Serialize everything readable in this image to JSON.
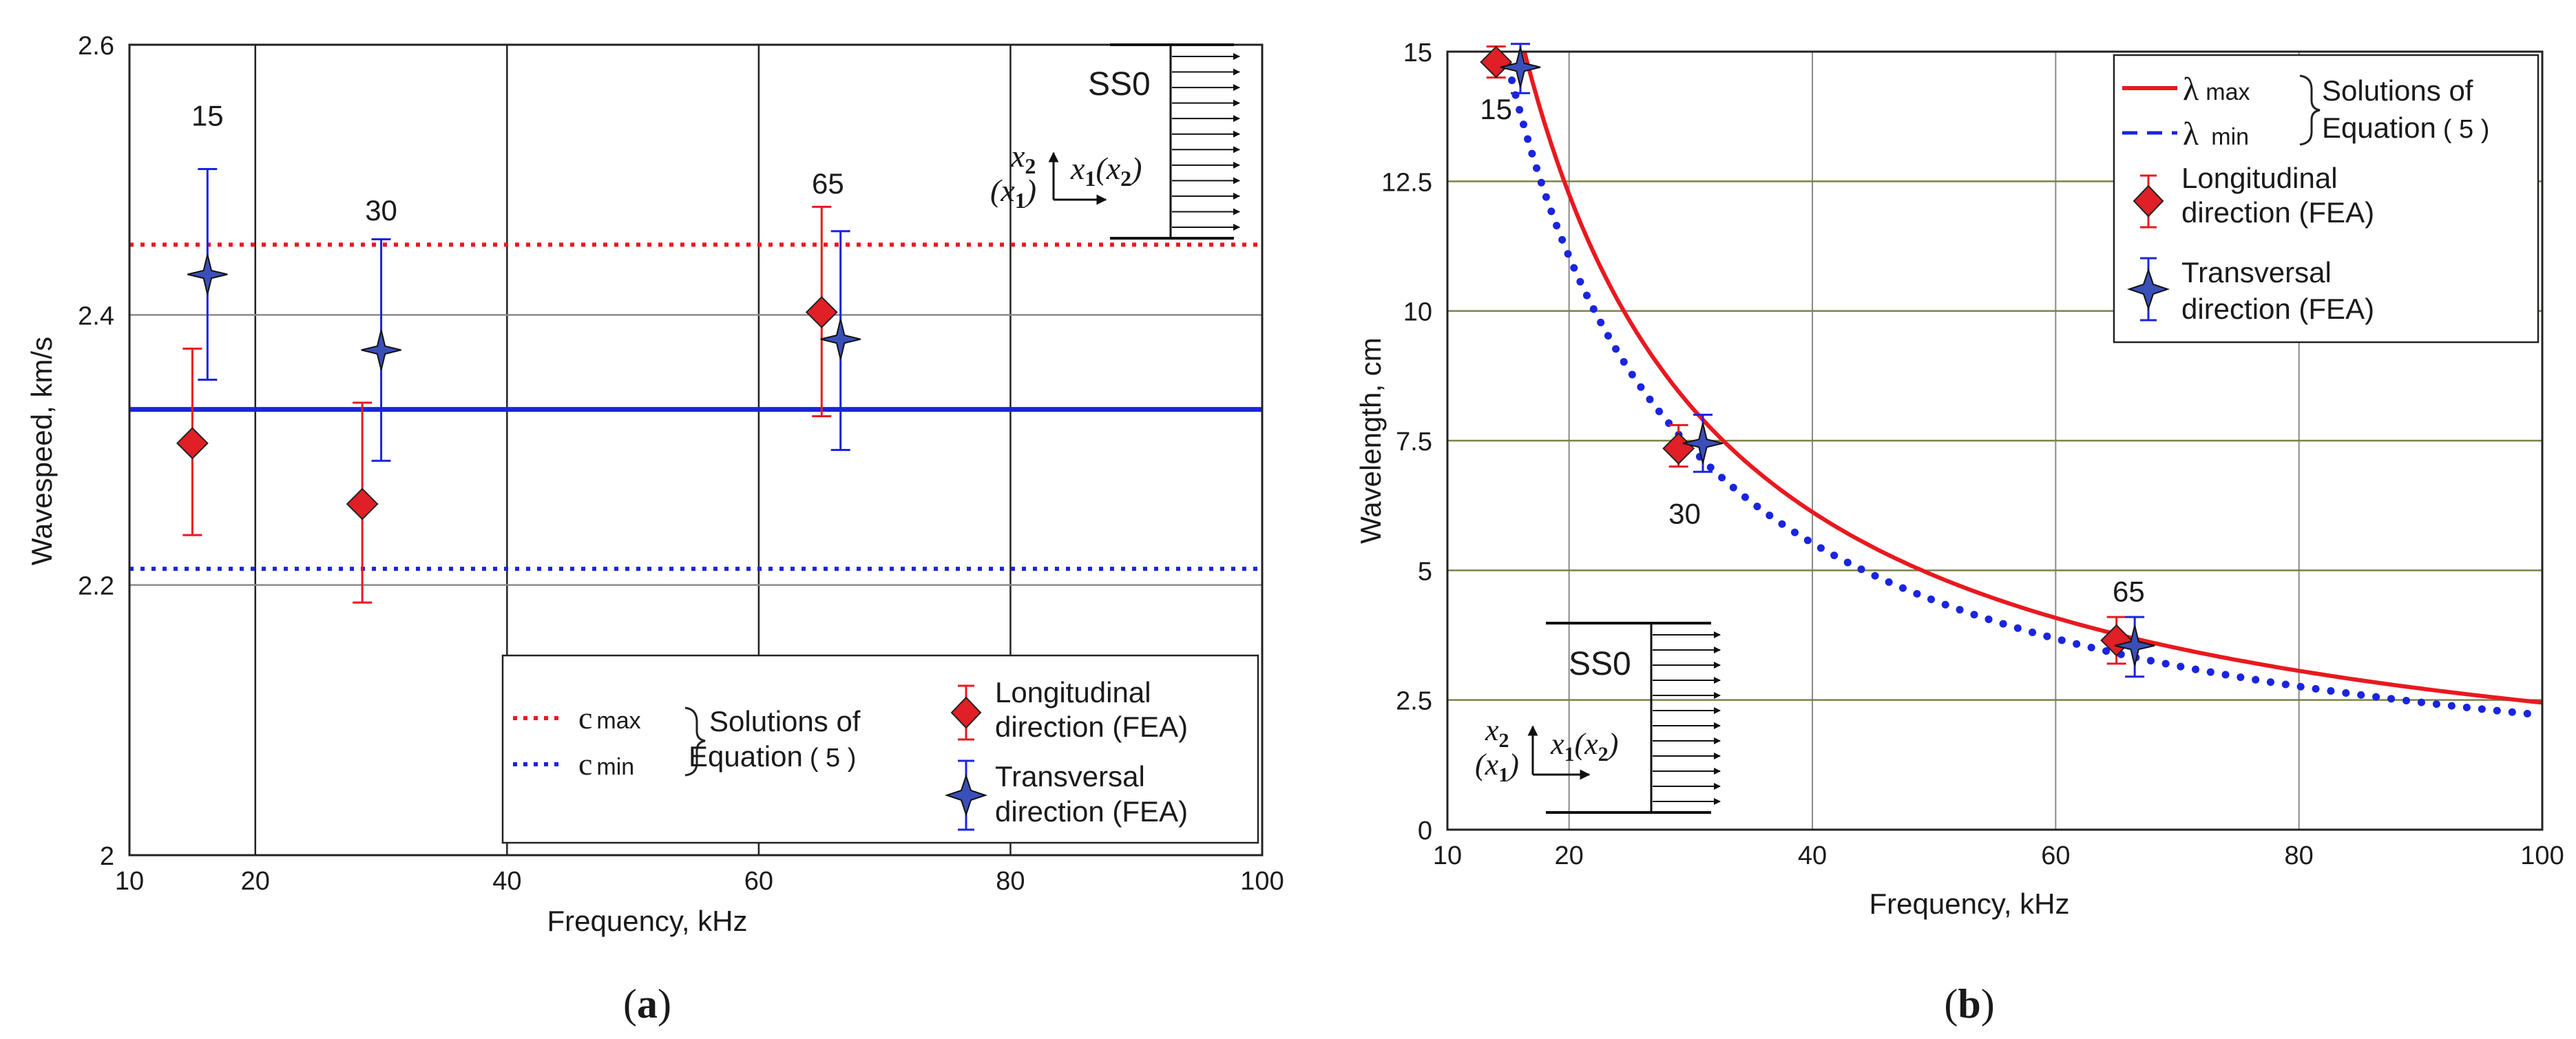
{
  "colors": {
    "red": "#e8191f",
    "blue": "#1a24e0",
    "marker_red": "#e01f26",
    "marker_blue": "#3a4fb8",
    "grid_dark": "#222222",
    "grid_light": "#8a8a8a",
    "grid_olive": "#7b8246"
  },
  "chart_data": [
    {
      "type": "scatter",
      "panel_label": "a",
      "xlabel": "Frequency, kHz",
      "ylabel": "Wavespeed, km/s",
      "xlim": [
        10,
        100
      ],
      "ylim": [
        2.0,
        2.6
      ],
      "xticks": [
        "10",
        "20",
        "40",
        "60",
        "80",
        "100"
      ],
      "yticks": [
        "2",
        "2.2",
        "2.4",
        "2.6"
      ],
      "hlines": [
        {
          "name": "cmax",
          "value": 2.452,
          "style": "dotted",
          "color": "red"
        },
        {
          "name": "cmin",
          "value": 2.212,
          "style": "dotted",
          "color": "blue"
        },
        {
          "name": "mid",
          "value": 2.33,
          "style": "solid",
          "color": "blue"
        }
      ],
      "series": [
        {
          "name": "Longitudinal direction (FEA)",
          "marker": "diamond",
          "color": "red",
          "x": [
            15,
            28.5,
            65
          ],
          "y": [
            2.305,
            2.26,
            2.402
          ],
          "err_low": [
            2.237,
            2.187,
            2.325
          ],
          "err_high": [
            2.375,
            2.335,
            2.48
          ]
        },
        {
          "name": "Transversal direction (FEA)",
          "marker": "star",
          "color": "blue",
          "x": [
            16.2,
            30,
            66.5
          ],
          "y": [
            2.43,
            2.374,
            2.382
          ],
          "err_low": [
            2.352,
            2.292,
            2.3
          ],
          "err_high": [
            2.508,
            2.456,
            2.462
          ]
        }
      ],
      "point_labels": [
        {
          "text": "15",
          "x": 16.2,
          "y": 2.54
        },
        {
          "text": "30",
          "x": 30,
          "y": 2.47
        },
        {
          "text": "65",
          "x": 65.5,
          "y": 2.49
        }
      ],
      "legend": {
        "cmax_c": "c",
        "cmax_sub": "max",
        "cmin_c": "c",
        "cmin_sub": "min",
        "solutions_line1": "Solutions of",
        "solutions_line2": "Equation",
        "solutions_eq": "( 5 )",
        "long_line1": "Longitudinal",
        "long_line2": "direction (FEA)",
        "trans_line1": "Transversal",
        "trans_line2": "direction (FEA)"
      },
      "inset": {
        "title": "SS0",
        "x2": "x",
        "x2_sub": "2",
        "x1_open": "(x",
        "x1_sub": "1",
        "x1_close": ")",
        "x1x2_a": "x",
        "x1x2_a_sub": "1",
        "x1x2_open": "(x",
        "x1x2_b_sub": "2",
        "x1x2_close": ")"
      }
    },
    {
      "type": "line",
      "panel_label": "b",
      "xlabel": "Frequency, kHz",
      "ylabel": "Wavelength, cm",
      "xlim": [
        10,
        100
      ],
      "ylim": [
        0,
        15
      ],
      "xticks": [
        "10",
        "20",
        "40",
        "60",
        "80",
        "100"
      ],
      "yticks": [
        "0",
        "2.5",
        "5",
        "7.5",
        "10",
        "12.5",
        "15"
      ],
      "curves": [
        {
          "name": "lambda max",
          "style": "solid",
          "color": "red",
          "formula": "245/f",
          "x_range": [
            16,
            100
          ]
        },
        {
          "name": "lambda min",
          "style": "dotted",
          "color": "blue",
          "formula": "221/f",
          "x_range": [
            15,
            100
          ]
        }
      ],
      "series": [
        {
          "name": "Longitudinal direction (FEA)",
          "marker": "diamond",
          "color": "red",
          "x": [
            14,
            29,
            65
          ],
          "y": [
            14.8,
            7.35,
            3.65
          ],
          "err_low": [
            14.5,
            7.0,
            3.2
          ],
          "err_high": [
            15.1,
            7.8,
            4.1
          ]
        },
        {
          "name": "Transversal direction (FEA)",
          "marker": "star",
          "color": "blue",
          "x": [
            16,
            31,
            66.5
          ],
          "y": [
            14.7,
            7.45,
            3.55
          ],
          "err_low": [
            14.2,
            6.9,
            2.95
          ],
          "err_high": [
            15.15,
            8.0,
            4.1
          ]
        }
      ],
      "point_labels": [
        {
          "text": "15",
          "x": 14,
          "y": 13.7
        },
        {
          "text": "30",
          "x": 29.5,
          "y": 5.9
        },
        {
          "text": "65",
          "x": 66,
          "y": 4.4
        }
      ],
      "legend": {
        "lmax_sym": "λ",
        "lmax_sub": "max",
        "lmin_sym": "λ",
        "lmin_sub": "min",
        "solutions_line1": "Solutions of",
        "solutions_line2": "Equation",
        "solutions_eq": "( 5 )",
        "long_line1": "Longitudinal",
        "long_line2": "direction (FEA)",
        "trans_line1": "Transversal",
        "trans_line2": "direction (FEA)"
      },
      "inset": {
        "title": "SS0",
        "x2": "x",
        "x2_sub": "2",
        "x1_open": "(x",
        "x1_sub": "1",
        "x1_close": ")",
        "x1x2_a": "x",
        "x1x2_a_sub": "1",
        "x1x2_open": "(x",
        "x1x2_b_sub": "2",
        "x1x2_close": ")"
      }
    }
  ]
}
